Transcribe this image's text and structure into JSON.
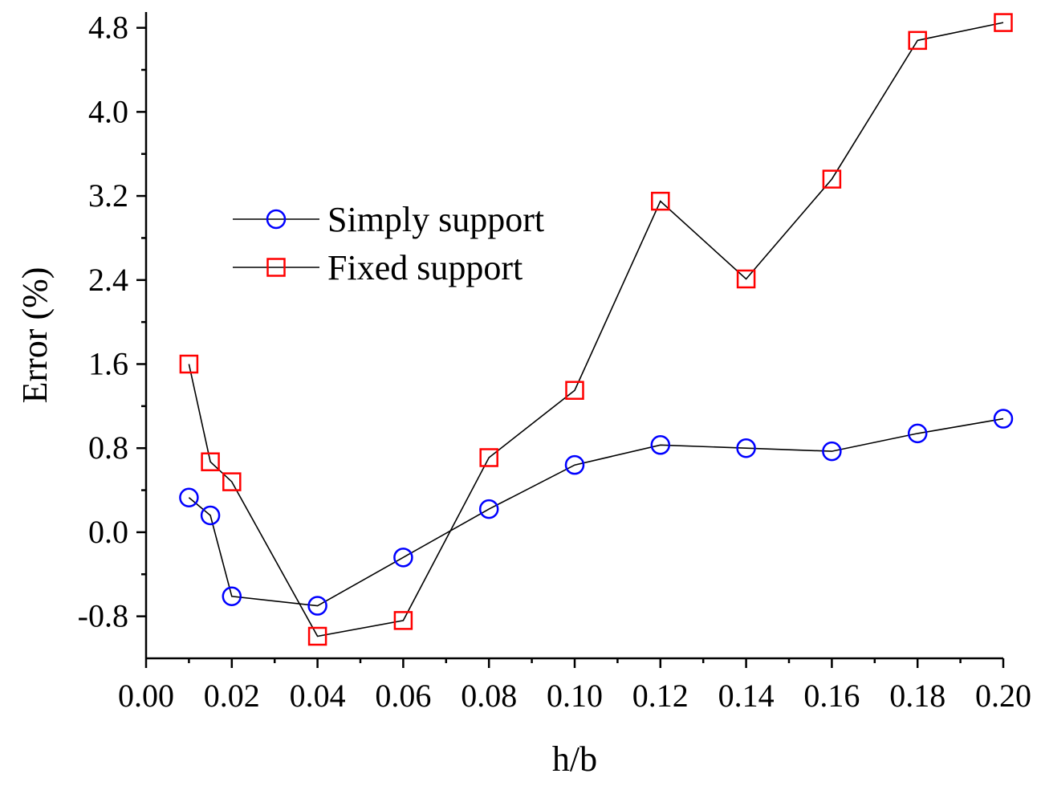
{
  "chart_data": {
    "type": "line",
    "title": "",
    "xlabel": "h/b",
    "ylabel": "Error (%)",
    "xlim": [
      0.0,
      0.2
    ],
    "ylim": [
      -1.2,
      4.95
    ],
    "x_ticks": [
      0.0,
      0.02,
      0.04,
      0.06,
      0.08,
      0.1,
      0.12,
      0.14,
      0.16,
      0.18,
      0.2
    ],
    "x_tick_labels": [
      "0.00",
      "0.02",
      "0.04",
      "0.06",
      "0.08",
      "0.10",
      "0.12",
      "0.14",
      "0.16",
      "0.18",
      "0.20"
    ],
    "y_ticks": [
      -0.8,
      0.0,
      0.8,
      1.6,
      2.4,
      3.2,
      4.0,
      4.8
    ],
    "y_tick_labels": [
      "-0.8",
      "0.0",
      "0.8",
      "1.6",
      "2.4",
      "3.2",
      "4.0",
      "4.8"
    ],
    "grid": false,
    "legend_position": "upper-left",
    "series": [
      {
        "name": "Simply support",
        "marker": "circle",
        "marker_color": "#0000ff",
        "line_color": "#000000",
        "x": [
          0.01,
          0.015,
          0.02,
          0.04,
          0.06,
          0.08,
          0.1,
          0.12,
          0.14,
          0.16,
          0.18,
          0.2
        ],
        "y": [
          0.33,
          0.16,
          -0.61,
          -0.7,
          -0.24,
          0.22,
          0.64,
          0.83,
          0.8,
          0.77,
          0.94,
          1.08
        ]
      },
      {
        "name": "Fixed support",
        "marker": "square",
        "marker_color": "#ff0000",
        "line_color": "#000000",
        "x": [
          0.01,
          0.015,
          0.02,
          0.04,
          0.06,
          0.08,
          0.1,
          0.12,
          0.14,
          0.16,
          0.18,
          0.2
        ],
        "y": [
          1.6,
          0.67,
          0.48,
          -0.99,
          -0.84,
          0.71,
          1.35,
          3.15,
          2.41,
          3.36,
          4.68,
          4.85
        ]
      }
    ]
  }
}
